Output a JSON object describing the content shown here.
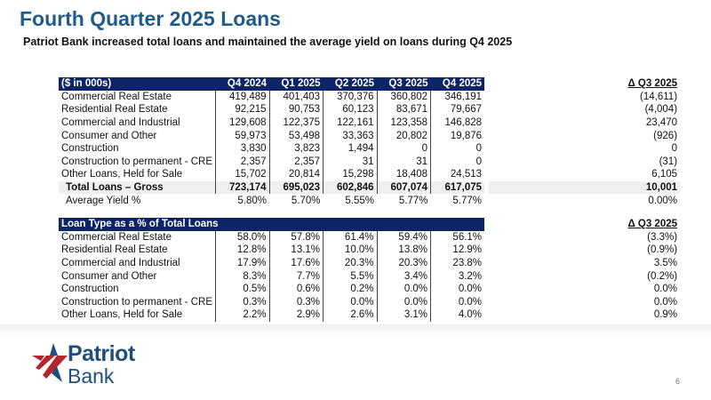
{
  "title": "Fourth Quarter 2025 Loans",
  "subtitle": "Patriot Bank increased total loans and maintained the average yield on loans during Q4 2025",
  "table1": {
    "header": [
      "($ in 000s)",
      "Q4 2024",
      "Q1 2025",
      "Q2 2025",
      "Q3 2025",
      "Q4 2025",
      "Δ Q3 2025"
    ],
    "rows": [
      [
        "Commercial Real Estate",
        "419,489",
        "401,403",
        "370,376",
        "360,802",
        "346,191",
        "(14,611)"
      ],
      [
        "Residential Real Estate",
        "92,215",
        "90,753",
        "60,123",
        "83,671",
        "79,667",
        "(4,004)"
      ],
      [
        "Commercial and Industrial",
        "129,608",
        "122,375",
        "122,161",
        "123,358",
        "146,828",
        "23,470"
      ],
      [
        "Consumer and Other",
        "59,973",
        "53,498",
        "33,363",
        "20,802",
        "19,876",
        "(926)"
      ],
      [
        "Construction",
        "3,830",
        "3,823",
        "1,494",
        "0",
        "0",
        "0"
      ],
      [
        "Construction to permanent - CRE",
        "2,357",
        "2,357",
        "31",
        "31",
        "0",
        "(31)"
      ],
      [
        "Other Loans, Held for Sale",
        "15,702",
        "20,814",
        "15,298",
        "18,408",
        "24,513",
        "6,105"
      ]
    ],
    "total": [
      "Total Loans – Gross",
      "723,174",
      "695,023",
      "602,846",
      "607,074",
      "617,075",
      "10,001"
    ],
    "yield": [
      "Average Yield %",
      "5.80%",
      "5.70%",
      "5.55%",
      "5.77%",
      "5.77%",
      "0.00%"
    ]
  },
  "table2": {
    "header": [
      "Loan Type as a % of Total Loans",
      "Δ Q3 2025"
    ],
    "rows": [
      [
        "Commercial Real Estate",
        "58.0%",
        "57.8%",
        "61.4%",
        "59.4%",
        "56.1%",
        "(3.3%)"
      ],
      [
        "Residential Real Estate",
        "12.8%",
        "13.1%",
        "10.0%",
        "13.8%",
        "12.9%",
        "(0.9%)"
      ],
      [
        "Commercial and Industrial",
        "17.9%",
        "17.6%",
        "20.3%",
        "20.3%",
        "23.8%",
        "3.5%"
      ],
      [
        "Consumer and Other",
        "8.3%",
        "7.7%",
        "5.5%",
        "3.4%",
        "3.2%",
        "(0.2%)"
      ],
      [
        "Construction",
        "0.5%",
        "0.6%",
        "0.2%",
        "0.0%",
        "0.0%",
        "0.0%"
      ],
      [
        "Construction to permanent - CRE",
        "0.3%",
        "0.3%",
        "0.0%",
        "0.0%",
        "0.0%",
        "0.0%"
      ],
      [
        "Other Loans, Held for Sale",
        "2.2%",
        "2.9%",
        "2.6%",
        "3.1%",
        "4.0%",
        "0.9%"
      ]
    ]
  },
  "logo": {
    "line1": "Patriot",
    "line2": "Bank",
    "colors": {
      "navy": "#1f4e79",
      "red": "#b3262d"
    }
  },
  "page_number": "6"
}
